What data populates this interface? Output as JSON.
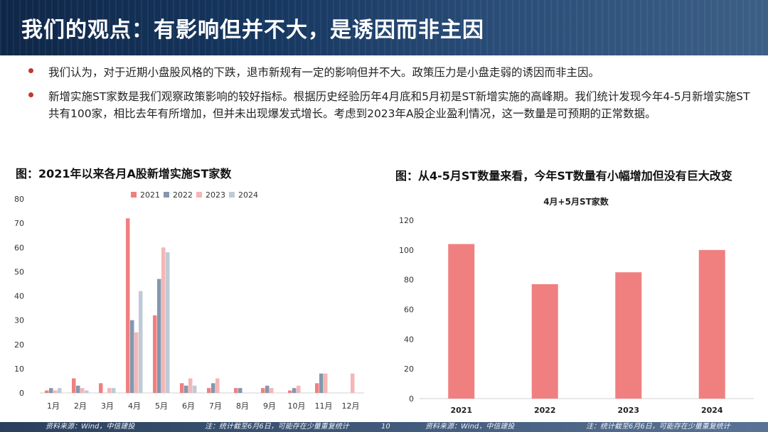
{
  "header": {
    "title": "我们的观点：有影响但并不大，是诱因而非主因"
  },
  "bullets": [
    "我们认为，对于近期小盘股风格的下跌，退市新规有一定的影响但并不大。政策压力是小盘走弱的诱因而非主因。",
    "新增实施ST家数是我们观察政策影响的较好指标。根据历史经验历年4月底和5月初是ST新增实施的高峰期。我们统计发现今年4-5月新增实施ST共有100家，相比去年有所增加，但并未出现爆发式增长。考虑到2023年A股企业盈利情况，这一数量是可预期的正常数据。"
  ],
  "left_chart_title": "图：2021年以来各月A股新增实施ST家数",
  "right_chart_title": "图：从4-5月ST数量来看，今年ST数量有小幅增加但没有巨大改变",
  "chart_data": [
    {
      "type": "bar",
      "categories": [
        "1月",
        "2月",
        "3月",
        "4月",
        "5月",
        "6月",
        "7月",
        "8月",
        "9月",
        "10月",
        "11月",
        "12月"
      ],
      "series": [
        {
          "name": "2021",
          "color": "#f08080",
          "values": [
            1,
            6,
            4,
            72,
            32,
            4,
            2,
            2,
            2,
            1,
            4,
            0
          ]
        },
        {
          "name": "2022",
          "color": "#8597ac",
          "values": [
            2,
            3,
            0,
            30,
            47,
            3,
            4,
            2,
            3,
            2,
            8,
            0
          ]
        },
        {
          "name": "2023",
          "color": "#f4b6b6",
          "values": [
            1,
            2,
            2,
            25,
            60,
            6,
            6,
            0,
            2,
            3,
            8,
            8
          ]
        },
        {
          "name": "2024",
          "color": "#bfcad7",
          "values": [
            2,
            1,
            2,
            42,
            58,
            3,
            0,
            0,
            0,
            0,
            0,
            0
          ]
        }
      ],
      "ylim": [
        0,
        80
      ],
      "yticks": [
        0,
        10,
        20,
        30,
        40,
        50,
        60,
        70,
        80
      ],
      "legend": "top"
    },
    {
      "type": "bar",
      "title": "4月+5月ST家数",
      "categories": [
        "2021",
        "2022",
        "2023",
        "2024"
      ],
      "values": [
        104,
        77,
        85,
        100
      ],
      "color": "#f08080",
      "ylim": [
        0,
        120
      ],
      "yticks": [
        0,
        20,
        40,
        60,
        80,
        100,
        120
      ]
    }
  ],
  "footer": {
    "source_left": "资料来源：Wind，中信建投",
    "note_left": "注：统计截至6月6日，可能存在少量重复统计",
    "page": "10",
    "source_right": "资料来源：Wind，中信建投",
    "note_right": "注：统计截至6月6日，可能存在少量重复统计"
  }
}
